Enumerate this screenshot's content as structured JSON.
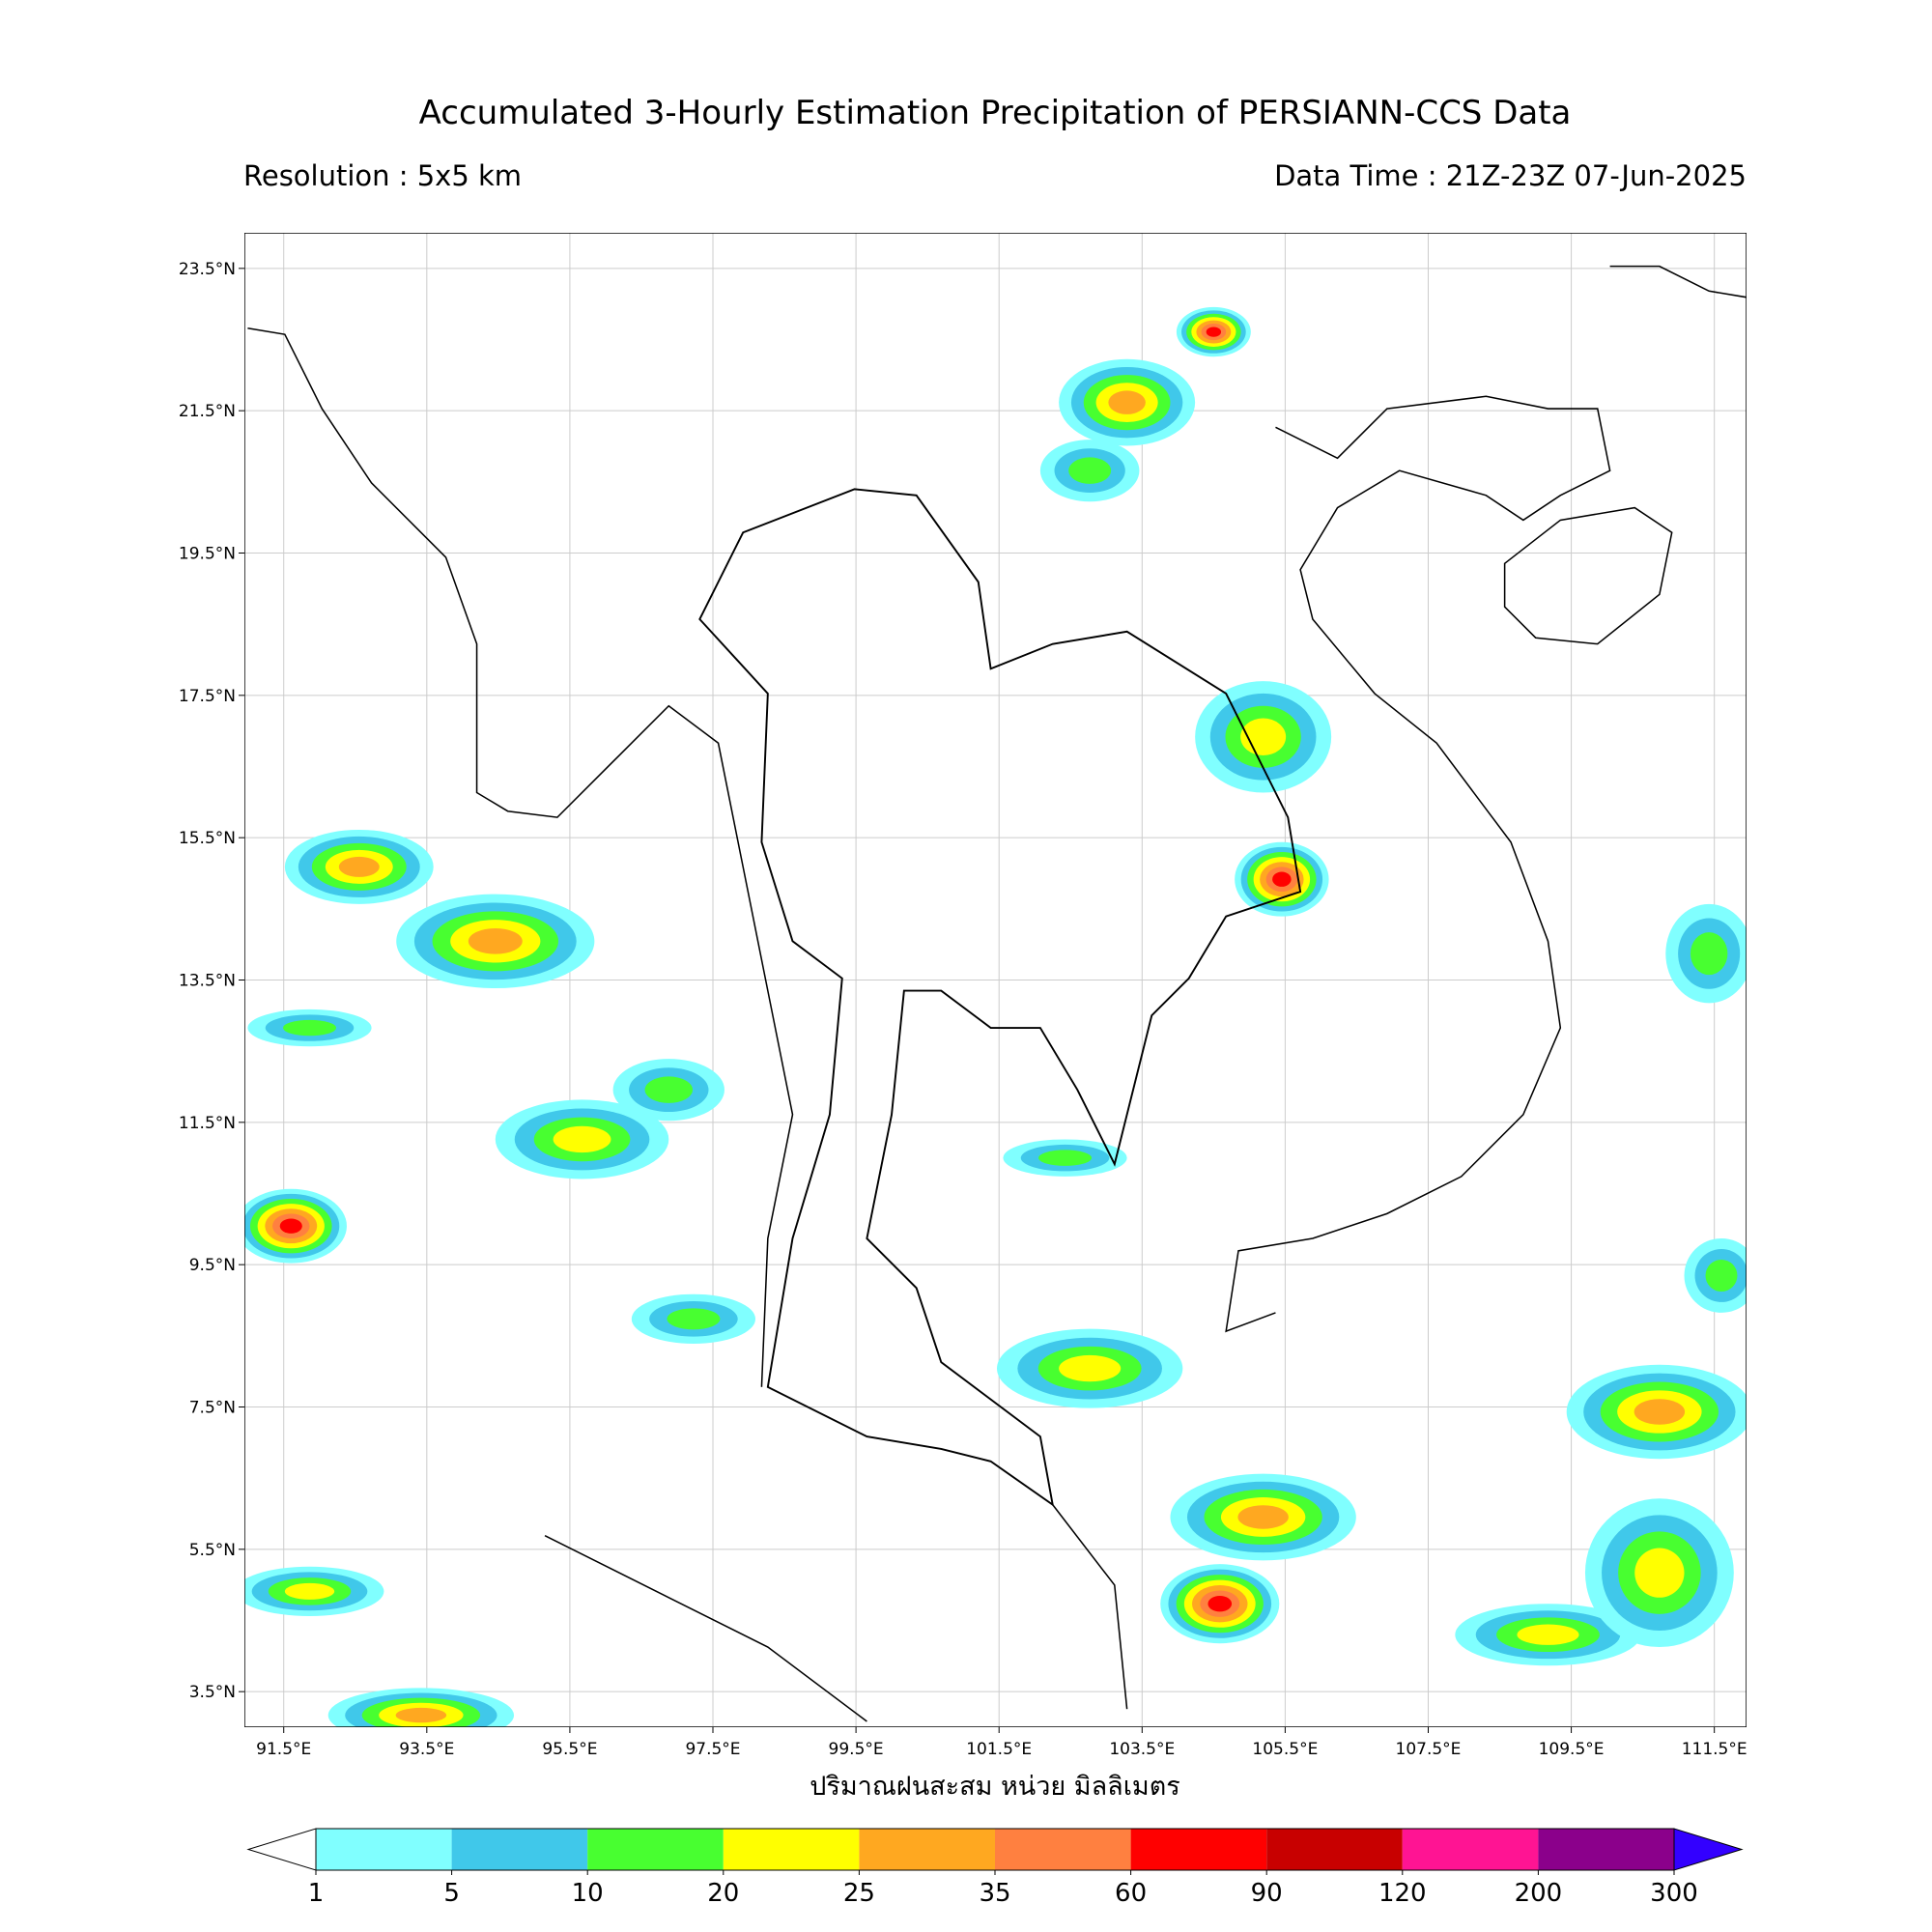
{
  "title": "Accumulated 3-Hourly Estimation Precipitation of PERSIANN-CCS Data",
  "resolution": "Resolution : 5x5 km",
  "data_time": "Data Time : 21Z-23Z 07-Jun-2025",
  "map": {
    "xlim": [
      90.95,
      111.95
    ],
    "ylim": [
      3.0,
      24.0
    ],
    "xticks": [
      {
        "value": 91.5,
        "label": "91.5°E"
      },
      {
        "value": 93.5,
        "label": "93.5°E"
      },
      {
        "value": 95.5,
        "label": "95.5°E"
      },
      {
        "value": 97.5,
        "label": "97.5°E"
      },
      {
        "value": 99.5,
        "label": "99.5°E"
      },
      {
        "value": 101.5,
        "label": "101.5°E"
      },
      {
        "value": 103.5,
        "label": "103.5°E"
      },
      {
        "value": 105.5,
        "label": "105.5°E"
      },
      {
        "value": 107.5,
        "label": "107.5°E"
      },
      {
        "value": 109.5,
        "label": "109.5°E"
      },
      {
        "value": 111.5,
        "label": "111.5°E"
      }
    ],
    "yticks": [
      {
        "value": 23.5,
        "label": "23.5°N"
      },
      {
        "value": 21.5,
        "label": "21.5°N"
      },
      {
        "value": 19.5,
        "label": "19.5°N"
      },
      {
        "value": 17.5,
        "label": "17.5°N"
      },
      {
        "value": 15.5,
        "label": "15.5°N"
      },
      {
        "value": 13.5,
        "label": "13.5°N"
      },
      {
        "value": 11.5,
        "label": "11.5°N"
      },
      {
        "value": 9.5,
        "label": "9.5°N"
      },
      {
        "value": 7.5,
        "label": "7.5°N"
      },
      {
        "value": 5.5,
        "label": "5.5°N"
      },
      {
        "value": 3.5,
        "label": "3.5°N"
      }
    ],
    "grid": true,
    "xlabel": "ปริมาณฝนสะสม หน่วย มิลลิเมตร"
  },
  "colorbar": {
    "levels": [
      1,
      5,
      10,
      20,
      25,
      35,
      60,
      90,
      120,
      200,
      300
    ],
    "under_color": "#ffffff",
    "colors": [
      "#80ffff",
      "#40c8ea",
      "#48ff30",
      "#ffff00",
      "#ffa820",
      "#ff8040",
      "#ff0000",
      "#c80000",
      "#ff1493",
      "#8b008b"
    ],
    "over_color": "#3300ff"
  }
}
